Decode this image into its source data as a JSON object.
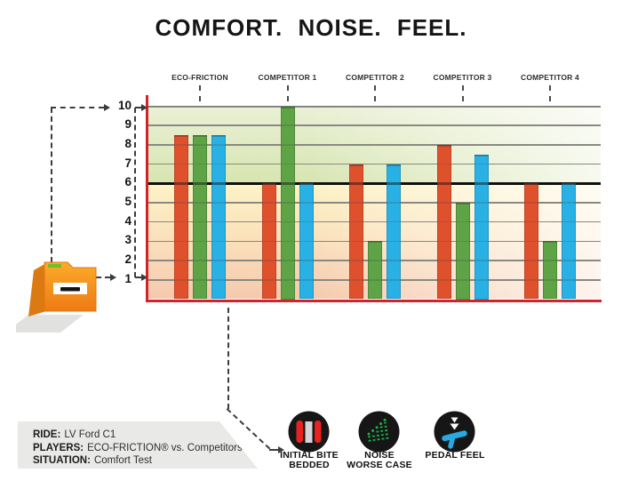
{
  "page": {
    "title": "COMFORT. NOISE. FEEL."
  },
  "chart_data": {
    "type": "bar",
    "title": "COMFORT. NOISE. FEEL.",
    "categories": [
      "ECO-FRICTION",
      "COMPETITOR 1",
      "COMPETITOR 2",
      "COMPETITOR 3",
      "COMPETITOR 4"
    ],
    "series": [
      {
        "name": "INITIAL BITE BEDDED",
        "color": "#df512d",
        "values": [
          8.5,
          6,
          7,
          8,
          6
        ]
      },
      {
        "name": "NOISE WORSE CASE",
        "color": "#5ea345",
        "values": [
          8.5,
          10,
          3,
          5,
          3
        ]
      },
      {
        "name": "PEDAL FEEL",
        "color": "#29b0e4",
        "values": [
          8.5,
          6,
          7,
          7.5,
          6
        ]
      }
    ],
    "ylim": [
      0,
      10
    ],
    "yticks": [
      1,
      2,
      3,
      4,
      5,
      6,
      7,
      8,
      9,
      10
    ],
    "threshold": 6,
    "grid": true,
    "legend_position": "bottom",
    "zone_above_colors": [
      "#eaf0d6",
      "#d7e5b0"
    ],
    "zone_below_colors": [
      "#fcf3c6",
      "#f5c9ae"
    ],
    "axis_color": "#d2232a",
    "threshold_color": "#141414"
  },
  "legend": {
    "items": [
      {
        "icon": "brake-pads-icon",
        "line1": "INITIAL BITE",
        "line2": "BEDDED"
      },
      {
        "icon": "noise-icon",
        "line1": "NOISE",
        "line2": "WORSE CASE"
      },
      {
        "icon": "pedal-icon",
        "line1": "PEDAL FEEL",
        "line2": ""
      }
    ]
  },
  "info_box": {
    "ride_label": "RIDE:",
    "ride_value": "LV Ford C1",
    "players_label": "PLAYERS:",
    "players_value": "ECO-FRICTION® vs. Competitors",
    "situation_label": "SITUATION:",
    "situation_value": "Comfort Test"
  }
}
